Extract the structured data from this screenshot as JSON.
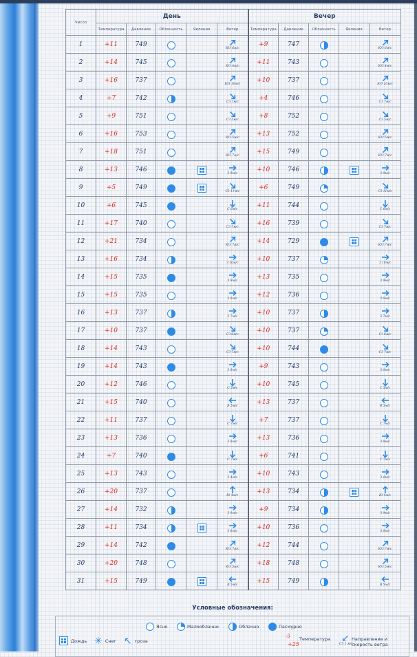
{
  "headers": {
    "day_col": "Число",
    "day_group": "День",
    "evening_group": "Вечер",
    "temperature": "Температура",
    "pressure": "Давление",
    "cloudiness": "Облачность",
    "phenomena": "Явления",
    "wind": "Ветер"
  },
  "icons": {
    "clear": "clear-sky-icon",
    "partly": "partly-cloudy-icon",
    "cloudy": "cloudy-icon",
    "overcast": "overcast-icon",
    "rain": "rain-icon",
    "snow": "snow-icon",
    "storm": "thunderstorm-icon",
    "wind_arrow": "wind-arrow-icon"
  },
  "colors": {
    "temperature": "#e0261a",
    "accent": "#2d8be8",
    "text": "#1f3b6b"
  },
  "rows": [
    {
      "day": "1",
      "d": {
        "t": "+11",
        "p": "749",
        "c": "clear",
        "ph": "",
        "wd": "NE",
        "wt": "ЮЗ 6м/с"
      },
      "e": {
        "t": "+9",
        "p": "747",
        "c": "half",
        "ph": "",
        "wd": "NE",
        "wt": "ЮЗ 6м/с"
      }
    },
    {
      "day": "2",
      "d": {
        "t": "+14",
        "p": "745",
        "c": "clear",
        "ph": "",
        "wd": "NE",
        "wt": "ЮЗ 4м/с"
      },
      "e": {
        "t": "+11",
        "p": "743",
        "c": "clear",
        "ph": "",
        "wd": "NE",
        "wt": "ЮЗ 4м/с"
      }
    },
    {
      "day": "3",
      "d": {
        "t": "+16",
        "p": "737",
        "c": "clear",
        "ph": "",
        "wd": "NE",
        "wt": "ЮЗ 10м/с"
      },
      "e": {
        "t": "+10",
        "p": "737",
        "c": "clear",
        "ph": "",
        "wd": "NE",
        "wt": "ЮЗ 10м/с"
      }
    },
    {
      "day": "4",
      "d": {
        "t": "+7",
        "p": "742",
        "c": "half",
        "ph": "",
        "wd": "SE",
        "wt": "СЗ 7м/с"
      },
      "e": {
        "t": "+4",
        "p": "746",
        "c": "clear",
        "ph": "",
        "wd": "SE",
        "wt": "СЗ 7м/с"
      }
    },
    {
      "day": "5",
      "d": {
        "t": "+9",
        "p": "751",
        "c": "clear",
        "ph": "",
        "wd": "SE",
        "wt": "СЗ 5м/с"
      },
      "e": {
        "t": "+8",
        "p": "752",
        "c": "clear",
        "ph": "",
        "wd": "SE",
        "wt": "СЗ 5м/с"
      }
    },
    {
      "day": "6",
      "d": {
        "t": "+16",
        "p": "753",
        "c": "clear",
        "ph": "",
        "wd": "NE",
        "wt": "ЮЗ 5м/с"
      },
      "e": {
        "t": "+13",
        "p": "752",
        "c": "clear",
        "ph": "",
        "wd": "NE",
        "wt": "ЮЗ 5м/с"
      }
    },
    {
      "day": "7",
      "d": {
        "t": "+18",
        "p": "751",
        "c": "clear",
        "ph": "",
        "wd": "NE",
        "wt": "ЮЗ 7м/с"
      },
      "e": {
        "t": "+15",
        "p": "749",
        "c": "clear",
        "ph": "",
        "wd": "NE",
        "wt": "ЮЗ 7м/с"
      }
    },
    {
      "day": "8",
      "d": {
        "t": "+13",
        "p": "746",
        "c": "over",
        "ph": "rain",
        "wd": "E",
        "wt": "З 9м/с"
      },
      "e": {
        "t": "+10",
        "p": "746",
        "c": "half",
        "ph": "rain",
        "wd": "E",
        "wt": "З 9м/с"
      }
    },
    {
      "day": "9",
      "d": {
        "t": "+5",
        "p": "749",
        "c": "over",
        "ph": "rain",
        "wd": "SE",
        "wt": "СЗ 11м/с"
      },
      "e": {
        "t": "+6",
        "p": "749",
        "c": "small",
        "ph": "",
        "wd": "SE",
        "wt": "СЗ 11м/с"
      }
    },
    {
      "day": "10",
      "d": {
        "t": "+6",
        "p": "745",
        "c": "over",
        "ph": "",
        "wd": "S",
        "wt": "С 6м/с"
      },
      "e": {
        "t": "+11",
        "p": "744",
        "c": "clear",
        "ph": "",
        "wd": "S",
        "wt": "С 6м/с"
      }
    },
    {
      "day": "11",
      "d": {
        "t": "+17",
        "p": "740",
        "c": "clear",
        "ph": "",
        "wd": "SE",
        "wt": "СЗ 7м/с"
      },
      "e": {
        "t": "+16",
        "p": "739",
        "c": "clear",
        "ph": "",
        "wd": "SE",
        "wt": "СЗ 7м/с"
      }
    },
    {
      "day": "12",
      "d": {
        "t": "+21",
        "p": "734",
        "c": "clear",
        "ph": "",
        "wd": "NE",
        "wt": "ЮЗ 7м/с"
      },
      "e": {
        "t": "+14",
        "p": "729",
        "c": "over",
        "ph": "rain",
        "wd": "NE",
        "wt": "ЮЗ 7м/с"
      }
    },
    {
      "day": "13",
      "d": {
        "t": "+16",
        "p": "734",
        "c": "half",
        "ph": "",
        "wd": "E",
        "wt": "З 10м/с"
      },
      "e": {
        "t": "+10",
        "p": "737",
        "c": "small",
        "ph": "",
        "wd": "E",
        "wt": "З 10м/с"
      }
    },
    {
      "day": "14",
      "d": {
        "t": "+15",
        "p": "735",
        "c": "over",
        "ph": "",
        "wd": "E",
        "wt": "З 9м/с"
      },
      "e": {
        "t": "+13",
        "p": "735",
        "c": "clear",
        "ph": "",
        "wd": "E",
        "wt": "З 9м/с"
      }
    },
    {
      "day": "15",
      "d": {
        "t": "+15",
        "p": "735",
        "c": "clear",
        "ph": "",
        "wd": "E",
        "wt": "З 6м/с"
      },
      "e": {
        "t": "+12",
        "p": "736",
        "c": "clear",
        "ph": "",
        "wd": "E",
        "wt": "З 6м/с"
      }
    },
    {
      "day": "16",
      "d": {
        "t": "+13",
        "p": "737",
        "c": "half",
        "ph": "",
        "wd": "E",
        "wt": "З 7м/с"
      },
      "e": {
        "t": "+10",
        "p": "737",
        "c": "half",
        "ph": "",
        "wd": "E",
        "wt": "З 7м/с"
      }
    },
    {
      "day": "17",
      "d": {
        "t": "+10",
        "p": "737",
        "c": "over",
        "ph": "",
        "wd": "SE",
        "wt": "СЗ 6м/с"
      },
      "e": {
        "t": "+10",
        "p": "737",
        "c": "small",
        "ph": "",
        "wd": "SE",
        "wt": "СЗ 6м/с"
      }
    },
    {
      "day": "18",
      "d": {
        "t": "+14",
        "p": "743",
        "c": "clear",
        "ph": "",
        "wd": "SE",
        "wt": "СЗ 7м/с"
      },
      "e": {
        "t": "+10",
        "p": "744",
        "c": "over",
        "ph": "",
        "wd": "SE",
        "wt": "СЗ 7м/с"
      }
    },
    {
      "day": "19",
      "d": {
        "t": "+14",
        "p": "743",
        "c": "over",
        "ph": "",
        "wd": "E",
        "wt": "З 6м/с"
      },
      "e": {
        "t": "+9",
        "p": "743",
        "c": "clear",
        "ph": "",
        "wd": "E",
        "wt": "З 6м/с"
      }
    },
    {
      "day": "20",
      "d": {
        "t": "+12",
        "p": "746",
        "c": "clear",
        "ph": "",
        "wd": "S",
        "wt": "С 5м/с"
      },
      "e": {
        "t": "+10",
        "p": "745",
        "c": "clear",
        "ph": "",
        "wd": "S",
        "wt": "С 5м/с"
      }
    },
    {
      "day": "21",
      "d": {
        "t": "+15",
        "p": "740",
        "c": "clear",
        "ph": "",
        "wd": "W",
        "wt": "В 5м/с"
      },
      "e": {
        "t": "+13",
        "p": "737",
        "c": "clear",
        "ph": "",
        "wd": "W",
        "wt": "В 5м/с"
      }
    },
    {
      "day": "22",
      "d": {
        "t": "+11",
        "p": "737",
        "c": "clear",
        "ph": "",
        "wd": "S",
        "wt": "С 7м/с"
      },
      "e": {
        "t": "+7",
        "p": "737",
        "c": "clear",
        "ph": "",
        "wd": "S",
        "wt": "С 7м/с"
      }
    },
    {
      "day": "23",
      "d": {
        "t": "+13",
        "p": "736",
        "c": "clear",
        "ph": "",
        "wd": "E",
        "wt": "З 8м/с"
      },
      "e": {
        "t": "+13",
        "p": "736",
        "c": "clear",
        "ph": "",
        "wd": "E",
        "wt": "З 8м/с"
      }
    },
    {
      "day": "24",
      "d": {
        "t": "+7",
        "p": "740",
        "c": "over",
        "ph": "",
        "wd": "S",
        "wt": "С 7м/с"
      },
      "e": {
        "t": "+6",
        "p": "741",
        "c": "clear",
        "ph": "",
        "wd": "S",
        "wt": "С 7м/с"
      }
    },
    {
      "day": "25",
      "d": {
        "t": "+13",
        "p": "743",
        "c": "clear",
        "ph": "",
        "wd": "E",
        "wt": "З 4м/с"
      },
      "e": {
        "t": "+10",
        "p": "743",
        "c": "clear",
        "ph": "",
        "wd": "E",
        "wt": "З 4м/с"
      }
    },
    {
      "day": "26",
      "d": {
        "t": "+20",
        "p": "737",
        "c": "clear",
        "ph": "",
        "wd": "N",
        "wt": "Ю 4м/с"
      },
      "e": {
        "t": "+13",
        "p": "734",
        "c": "half",
        "ph": "rain",
        "wd": "N",
        "wt": "Ю 4м/с"
      }
    },
    {
      "day": "27",
      "d": {
        "t": "+14",
        "p": "732",
        "c": "half",
        "ph": "",
        "wd": "E",
        "wt": "З 9м/с"
      },
      "e": {
        "t": "+9",
        "p": "734",
        "c": "half",
        "ph": "",
        "wd": "E",
        "wt": "З 9м/с"
      }
    },
    {
      "day": "28",
      "d": {
        "t": "+11",
        "p": "734",
        "c": "half",
        "ph": "rain",
        "wd": "E",
        "wt": "З 6м/с"
      },
      "e": {
        "t": "+10",
        "p": "736",
        "c": "clear",
        "ph": "",
        "wd": "E",
        "wt": "З 6м/с"
      }
    },
    {
      "day": "29",
      "d": {
        "t": "+14",
        "p": "742",
        "c": "over",
        "ph": "",
        "wd": "NE",
        "wt": "ЮЗ 7м/с"
      },
      "e": {
        "t": "+12",
        "p": "744",
        "c": "clear",
        "ph": "",
        "wd": "NE",
        "wt": "ЮЗ 7м/с"
      }
    },
    {
      "day": "30",
      "d": {
        "t": "+20",
        "p": "748",
        "c": "clear",
        "ph": "",
        "wd": "NE",
        "wt": "ЮЗ 5м/с"
      },
      "e": {
        "t": "+18",
        "p": "748",
        "c": "clear",
        "ph": "",
        "wd": "NE",
        "wt": "ЮЗ 5м/с"
      }
    },
    {
      "day": "31",
      "d": {
        "t": "+15",
        "p": "749",
        "c": "over",
        "ph": "rain",
        "wd": "W",
        "wt": "В 5м/с"
      },
      "e": {
        "t": "+15",
        "p": "749",
        "c": "half",
        "ph": "",
        "wd": "W",
        "wt": "В 5м/с"
      }
    }
  ],
  "legend": {
    "title": "Условные обозначения:",
    "clear": "Ясно",
    "partly": "Малооблачно",
    "cloudy": "Облачно",
    "overcast": "Пасмурно",
    "rain": "Дождь",
    "snow": "Снег",
    "storm": "гроза",
    "temperature": "Температура",
    "temp_sample_small": "-5",
    "temp_sample_big": "+25",
    "wind_line1": "Направление и",
    "wind_line2": "скорость ветра",
    "wind_sample": "СЗ 1 м/с"
  }
}
